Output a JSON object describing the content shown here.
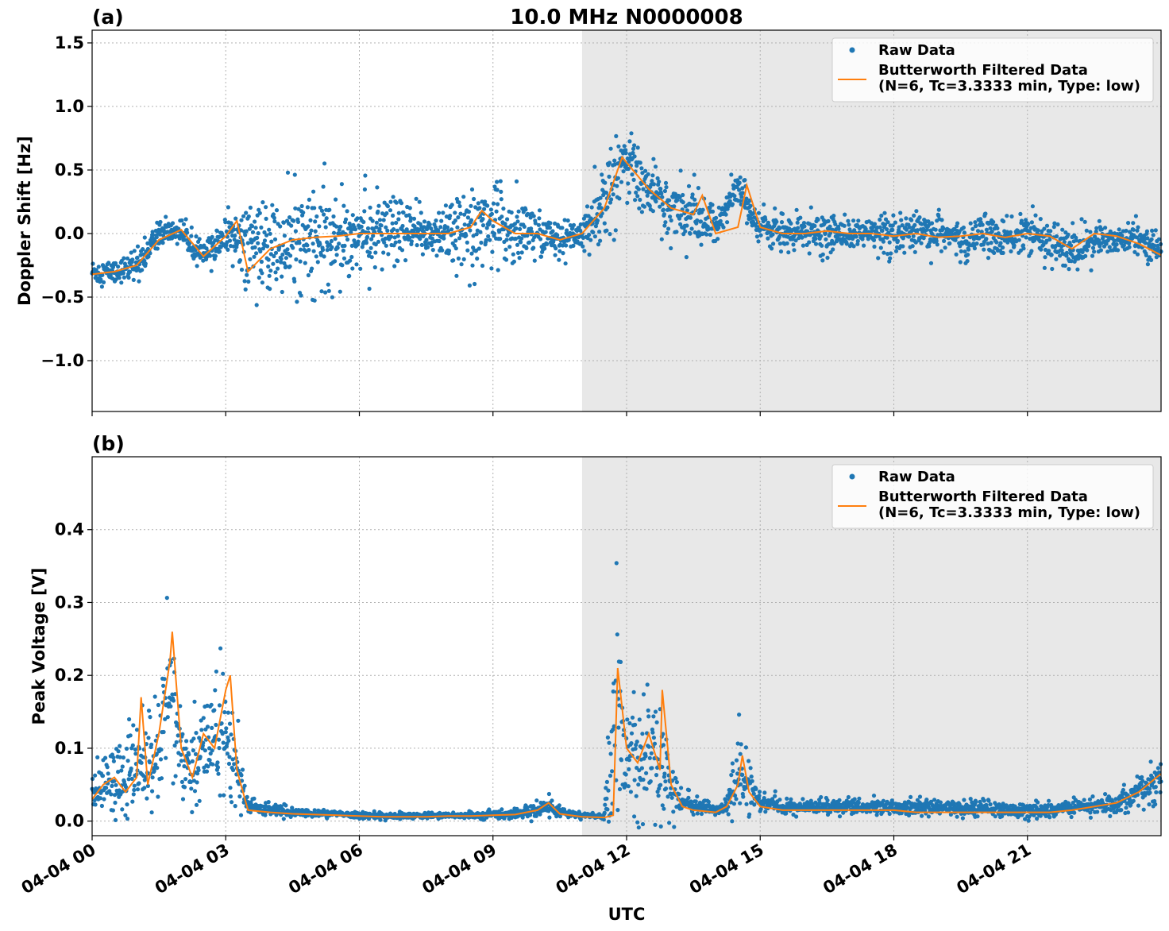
{
  "figure": {
    "title": "10.0 MHz N0000008",
    "xlabel": "UTC",
    "colors": {
      "raw": "#1f77b4",
      "filtered": "#ff7f0e",
      "shade": "#e8e8e8"
    }
  },
  "chart_data": [
    {
      "type": "scatter",
      "panel_label": "(a)",
      "title": "10.0 MHz N0000008",
      "ylabel": "Doppler Shift [Hz]",
      "xlabel": "",
      "xlim": [
        0,
        24
      ],
      "ylim": [
        -1.4,
        1.6
      ],
      "x_ticks": [
        0,
        3,
        6,
        9,
        12,
        15,
        18,
        21
      ],
      "y_ticks": [
        -1.0,
        -0.5,
        0.0,
        0.5,
        1.0,
        1.5
      ],
      "y_tick_labels": [
        "−1.0",
        "−0.5",
        "0.0",
        "0.5",
        "1.0",
        "1.5"
      ],
      "grid": true,
      "legend_position": "top-right",
      "shaded_region_hours": [
        11.0,
        24.0
      ],
      "series": [
        {
          "name": "Raw Data",
          "style": "points",
          "x": [
            0,
            0.5,
            1,
            1.5,
            2,
            2.5,
            3,
            3.5,
            4,
            4.5,
            5,
            5.5,
            6,
            6.5,
            7,
            7.5,
            8,
            8.5,
            9,
            9.5,
            10,
            10.5,
            11,
            11.5,
            12,
            12.5,
            13,
            13.5,
            14,
            14.5,
            15,
            15.5,
            16,
            16.5,
            17,
            17.5,
            18,
            18.5,
            19,
            19.5,
            20,
            20.5,
            21,
            21.5,
            22,
            22.5,
            23,
            23.5,
            24
          ],
          "y": [
            -0.3,
            -0.3,
            -0.25,
            0.0,
            0.02,
            -0.18,
            -0.02,
            -0.05,
            -0.15,
            -0.08,
            -0.05,
            -0.02,
            0.0,
            0.0,
            0.0,
            0.0,
            0.0,
            0.05,
            0.1,
            0.0,
            0.0,
            -0.05,
            0.0,
            0.25,
            0.6,
            0.35,
            0.2,
            0.15,
            0.05,
            0.35,
            0.05,
            0.0,
            0.0,
            0.0,
            0.0,
            0.0,
            -0.05,
            0.0,
            0.0,
            -0.05,
            0.0,
            -0.05,
            0.0,
            -0.05,
            -0.15,
            -0.05,
            -0.05,
            -0.05,
            -0.12
          ],
          "spread": [
            0.1,
            0.1,
            0.1,
            0.1,
            0.1,
            0.1,
            0.15,
            0.3,
            0.35,
            0.4,
            0.4,
            0.35,
            0.3,
            0.3,
            0.25,
            0.2,
            0.25,
            0.3,
            0.3,
            0.3,
            0.2,
            0.15,
            0.1,
            0.35,
            0.25,
            0.2,
            0.2,
            0.3,
            0.1,
            0.15,
            0.12,
            0.12,
            0.15,
            0.15,
            0.12,
            0.12,
            0.15,
            0.15,
            0.15,
            0.15,
            0.15,
            0.15,
            0.15,
            0.15,
            0.2,
            0.15,
            0.12,
            0.12,
            0.12
          ]
        },
        {
          "name": "Butterworth Filtered Data\n(N=6, Tc=3.3333 min, Type: low)",
          "style": "line",
          "x": [
            0,
            0.5,
            1,
            1.5,
            2,
            2.5,
            3,
            3.25,
            3.5,
            4,
            4.5,
            5,
            5.5,
            6,
            6.5,
            7,
            7.5,
            8,
            8.5,
            8.75,
            9,
            9.5,
            10,
            10.5,
            11,
            11.5,
            11.9,
            12.5,
            13,
            13.5,
            13.7,
            14,
            14.5,
            14.7,
            15,
            15.5,
            16,
            16.5,
            17,
            17.5,
            18,
            18.5,
            19,
            19.5,
            20,
            20.5,
            21,
            21.5,
            22,
            22.5,
            23,
            23.5,
            24
          ],
          "y": [
            -0.32,
            -0.3,
            -0.25,
            -0.05,
            0.03,
            -0.18,
            -0.02,
            0.1,
            -0.3,
            -0.12,
            -0.05,
            -0.03,
            -0.02,
            0.0,
            0.0,
            0.0,
            0.0,
            0.0,
            0.05,
            0.18,
            0.1,
            0.0,
            0.0,
            -0.05,
            0.0,
            0.2,
            0.6,
            0.35,
            0.2,
            0.15,
            0.3,
            0.0,
            0.05,
            0.38,
            0.05,
            0.0,
            0.0,
            0.02,
            0.0,
            0.0,
            -0.02,
            0.0,
            -0.03,
            -0.02,
            0.0,
            -0.03,
            0.0,
            -0.02,
            -0.12,
            0.0,
            -0.02,
            -0.08,
            -0.17
          ]
        }
      ]
    },
    {
      "type": "scatter",
      "panel_label": "(b)",
      "title": "",
      "ylabel": "Peak Voltage [V]",
      "xlabel": "UTC",
      "xlim": [
        0,
        24
      ],
      "ylim": [
        -0.02,
        0.5
      ],
      "x_ticks": [
        0,
        3,
        6,
        9,
        12,
        15,
        18,
        21
      ],
      "x_tick_labels": [
        "04-04 00",
        "04-04 03",
        "04-04 06",
        "04-04 09",
        "04-04 12",
        "04-04 15",
        "04-04 18",
        "04-04 21"
      ],
      "y_ticks": [
        0.0,
        0.1,
        0.2,
        0.3,
        0.4
      ],
      "y_tick_labels": [
        "0.0",
        "0.1",
        "0.2",
        "0.3",
        "0.4"
      ],
      "grid": true,
      "legend_position": "top-right",
      "shaded_region_hours": [
        11.0,
        24.0
      ],
      "series": [
        {
          "name": "Raw Data",
          "style": "points",
          "x": [
            0,
            0.25,
            0.5,
            0.75,
            1,
            1.25,
            1.5,
            1.75,
            2,
            2.25,
            2.5,
            2.75,
            3,
            3.25,
            3.5,
            4,
            4.5,
            5,
            5.5,
            6,
            6.5,
            7,
            7.5,
            8,
            8.5,
            9,
            9.5,
            10,
            10.25,
            10.5,
            11,
            11.5,
            11.75,
            12,
            12.25,
            12.5,
            12.75,
            13,
            13.25,
            13.5,
            14,
            14.25,
            14.5,
            14.75,
            15,
            15.5,
            16,
            16.5,
            17,
            17.5,
            18,
            18.5,
            19,
            19.5,
            20,
            20.5,
            21,
            21.5,
            22,
            22.5,
            23,
            23.5,
            24
          ],
          "y": [
            0.04,
            0.05,
            0.06,
            0.05,
            0.08,
            0.07,
            0.1,
            0.18,
            0.09,
            0.06,
            0.1,
            0.12,
            0.13,
            0.07,
            0.02,
            0.015,
            0.012,
            0.01,
            0.01,
            0.008,
            0.007,
            0.007,
            0.007,
            0.008,
            0.008,
            0.009,
            0.01,
            0.015,
            0.02,
            0.012,
            0.008,
            0.006,
            0.15,
            0.1,
            0.08,
            0.09,
            0.08,
            0.05,
            0.03,
            0.02,
            0.015,
            0.02,
            0.06,
            0.05,
            0.025,
            0.02,
            0.02,
            0.02,
            0.02,
            0.02,
            0.018,
            0.018,
            0.018,
            0.018,
            0.018,
            0.015,
            0.015,
            0.015,
            0.02,
            0.02,
            0.025,
            0.04,
            0.06
          ],
          "spread": [
            0.03,
            0.04,
            0.05,
            0.04,
            0.06,
            0.05,
            0.07,
            0.12,
            0.07,
            0.06,
            0.07,
            0.08,
            0.1,
            0.05,
            0.01,
            0.008,
            0.006,
            0.005,
            0.004,
            0.004,
            0.004,
            0.004,
            0.004,
            0.004,
            0.004,
            0.005,
            0.006,
            0.01,
            0.012,
            0.006,
            0.004,
            0.004,
            0.18,
            0.08,
            0.06,
            0.07,
            0.07,
            0.04,
            0.015,
            0.01,
            0.008,
            0.01,
            0.06,
            0.03,
            0.01,
            0.01,
            0.01,
            0.01,
            0.01,
            0.01,
            0.01,
            0.01,
            0.01,
            0.01,
            0.01,
            0.01,
            0.01,
            0.01,
            0.01,
            0.01,
            0.015,
            0.025,
            0.03
          ]
        },
        {
          "name": "Butterworth Filtered Data\n(N=6, Tc=3.3333 min, Type: low)",
          "style": "line",
          "x": [
            0,
            0.25,
            0.5,
            0.75,
            1,
            1.1,
            1.25,
            1.5,
            1.75,
            1.8,
            2,
            2.25,
            2.5,
            2.75,
            3,
            3.1,
            3.25,
            3.5,
            4,
            4.5,
            5,
            5.5,
            6,
            6.5,
            7,
            7.5,
            8,
            8.5,
            9,
            9.5,
            10,
            10.25,
            10.5,
            11,
            11.5,
            11.7,
            11.8,
            12,
            12.25,
            12.5,
            12.75,
            12.8,
            13,
            13.25,
            13.5,
            14,
            14.25,
            14.5,
            14.6,
            14.75,
            15,
            15.5,
            16,
            16.5,
            17,
            17.5,
            18,
            18.5,
            19,
            19.5,
            20,
            20.5,
            21,
            21.5,
            22,
            22.5,
            23,
            23.5,
            24
          ],
          "y": [
            0.03,
            0.05,
            0.06,
            0.04,
            0.06,
            0.17,
            0.05,
            0.12,
            0.22,
            0.26,
            0.1,
            0.06,
            0.12,
            0.1,
            0.18,
            0.2,
            0.07,
            0.015,
            0.012,
            0.01,
            0.009,
            0.008,
            0.007,
            0.006,
            0.006,
            0.006,
            0.007,
            0.007,
            0.008,
            0.009,
            0.015,
            0.025,
            0.01,
            0.006,
            0.005,
            0.008,
            0.21,
            0.1,
            0.08,
            0.12,
            0.07,
            0.18,
            0.05,
            0.02,
            0.015,
            0.012,
            0.02,
            0.05,
            0.09,
            0.04,
            0.02,
            0.015,
            0.015,
            0.015,
            0.015,
            0.015,
            0.015,
            0.012,
            0.012,
            0.012,
            0.012,
            0.012,
            0.012,
            0.012,
            0.015,
            0.02,
            0.025,
            0.04,
            0.065
          ]
        }
      ]
    }
  ]
}
